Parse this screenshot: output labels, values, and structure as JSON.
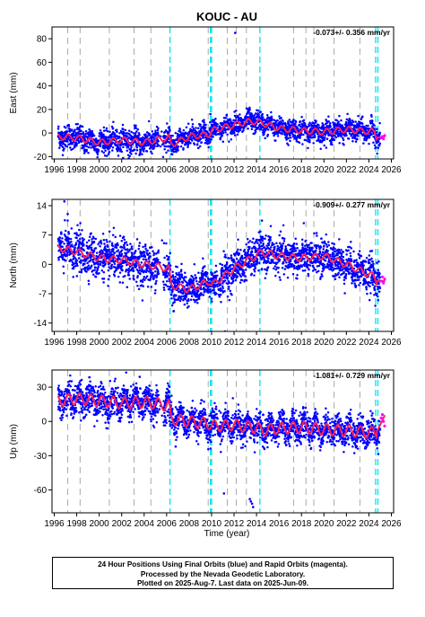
{
  "chart_data": {
    "title": "KOUC - AU",
    "type": "scatter",
    "xlabel": "Time (year)",
    "xlim": [
      1995.8,
      2026.2
    ],
    "xticks": [
      1996,
      1998,
      2000,
      2002,
      2004,
      2006,
      2008,
      2010,
      2012,
      2014,
      2016,
      2018,
      2020,
      2022,
      2024,
      2026
    ],
    "xticklabels": [
      "1996",
      "1998",
      "2000",
      "2002",
      "2004",
      "2006",
      "2008",
      "2010",
      "2012",
      "2014",
      "2016",
      "2018",
      "2020",
      "2022",
      "2024",
      "2026"
    ],
    "colors": {
      "final": "#0000ff",
      "rapid": "#ff00ff",
      "model": "#ff2255",
      "equipment_change": "#aaaaaa",
      "antenna_change": "#00e5ee"
    },
    "gray_dashed_lines": [
      1997.2,
      1998.3,
      2000.9,
      2003.1,
      2004.6,
      2009.7,
      2011.4,
      2012.2,
      2013.1,
      2017.3,
      2018.4,
      2019.1,
      2020.9,
      2023.2
    ],
    "cyan_dashed_lines": [
      2006.3,
      2009.9,
      2010.0,
      2014.3,
      2024.6,
      2024.8
    ],
    "panels": [
      {
        "ylabel": "East (mm)",
        "rate": "-0.073+/- 0.356 mm/yr",
        "ylim": [
          -22,
          90
        ],
        "yticks": [
          -20,
          0,
          20,
          40,
          60,
          80
        ],
        "yticklabels": [
          "-20",
          "0",
          "20",
          "40",
          "60",
          "80"
        ],
        "trend_points": [
          [
            1996.3,
            -3
          ],
          [
            1998,
            -4
          ],
          [
            2000,
            -8
          ],
          [
            2002,
            -6
          ],
          [
            2004,
            -8
          ],
          [
            2006.2,
            -4
          ],
          [
            2006.4,
            -10
          ],
          [
            2008,
            -3
          ],
          [
            2009.8,
            -1
          ],
          [
            2010,
            2
          ],
          [
            2012,
            7
          ],
          [
            2013.5,
            10
          ],
          [
            2014.3,
            9
          ],
          [
            2016,
            4
          ],
          [
            2018,
            2
          ],
          [
            2020,
            1
          ],
          [
            2022,
            3
          ],
          [
            2024.5,
            1
          ],
          [
            2024.7,
            -4
          ],
          [
            2025.4,
            -3
          ]
        ],
        "scatter": 4.5,
        "seasonal": 2.5,
        "rapid_points": [
          [
            2025.1,
            -4
          ],
          [
            2025.2,
            -3
          ],
          [
            2025.3,
            -5
          ],
          [
            2025.4,
            -2
          ]
        ],
        "outliers": [
          [
            2012.1,
            85
          ],
          [
            2013.4,
            20
          ],
          [
            2009.9,
            16
          ],
          [
            2006.5,
            -18
          ]
        ]
      },
      {
        "ylabel": "North (mm)",
        "rate": "-0.909+/- 0.277 mm/yr",
        "ylim": [
          -16,
          15.5
        ],
        "yticks": [
          -14,
          -7,
          0,
          7,
          14
        ],
        "yticklabels": [
          "-14",
          "-7",
          "0",
          "7",
          "14"
        ],
        "trend_points": [
          [
            1996.3,
            4
          ],
          [
            1998,
            3
          ],
          [
            2000,
            1.5
          ],
          [
            2002,
            1
          ],
          [
            2004,
            0
          ],
          [
            2006.2,
            -1
          ],
          [
            2006.4,
            -5
          ],
          [
            2008,
            -6
          ],
          [
            2009.8,
            -4
          ],
          [
            2010,
            -5
          ],
          [
            2012,
            -1
          ],
          [
            2014.2,
            2.5
          ],
          [
            2014.4,
            3
          ],
          [
            2016,
            2
          ],
          [
            2018,
            1.5
          ],
          [
            2020,
            2
          ],
          [
            2022,
            0
          ],
          [
            2024.5,
            -3
          ],
          [
            2024.7,
            -4
          ],
          [
            2025.4,
            -4
          ]
        ],
        "scatter": 2.2,
        "seasonal": 0.8,
        "rapid_points": [
          [
            2025.1,
            -4
          ],
          [
            2025.2,
            -3
          ],
          [
            2025.3,
            -4.5
          ],
          [
            2025.4,
            -3.5
          ]
        ],
        "outliers": [
          [
            1996.9,
            15
          ],
          [
            1997.2,
            12
          ],
          [
            2011.2,
            -16
          ],
          [
            2006.7,
            -9
          ]
        ]
      },
      {
        "ylabel": "Up (mm)",
        "rate": "-1.081+/- 0.729 mm/yr",
        "ylim": [
          -80,
          45
        ],
        "yticks": [
          -60,
          -30,
          0,
          30
        ],
        "yticklabels": [
          "-60",
          "-30",
          "0",
          "30"
        ],
        "trend_points": [
          [
            1996.3,
            18
          ],
          [
            1998,
            20
          ],
          [
            2000,
            18
          ],
          [
            2002,
            16
          ],
          [
            2004,
            17
          ],
          [
            2006.2,
            14
          ],
          [
            2006.4,
            2
          ],
          [
            2008,
            0
          ],
          [
            2009.8,
            -2
          ],
          [
            2010,
            -4
          ],
          [
            2012,
            -3
          ],
          [
            2014.2,
            -6
          ],
          [
            2014.4,
            -8
          ],
          [
            2016,
            -6
          ],
          [
            2018,
            -5
          ],
          [
            2020,
            -7
          ],
          [
            2022,
            -8
          ],
          [
            2024.5,
            -10
          ],
          [
            2024.7,
            -9
          ],
          [
            2025.4,
            5
          ]
        ],
        "scatter": 6.5,
        "seasonal": 5,
        "rapid_points": [
          [
            2025.1,
            3
          ],
          [
            2025.2,
            6
          ],
          [
            2025.3,
            0
          ],
          [
            2025.4,
            -4
          ]
        ],
        "outliers": [
          [
            2011.1,
            -63
          ],
          [
            2013.4,
            -68
          ],
          [
            2013.6,
            -72
          ],
          [
            2013.7,
            -75
          ],
          [
            2013.5,
            -70
          ],
          [
            2006.8,
            -22
          ],
          [
            2003.6,
            39
          ]
        ]
      }
    ]
  },
  "caption": {
    "line1": "24 Hour Positions Using Final Orbits (blue) and Rapid Orbits (magenta).",
    "line2": "Processed by the Nevada Geodetic Laboratory.",
    "line3": "Plotted on 2025-Aug-7. Last data on 2025-Jun-09."
  }
}
